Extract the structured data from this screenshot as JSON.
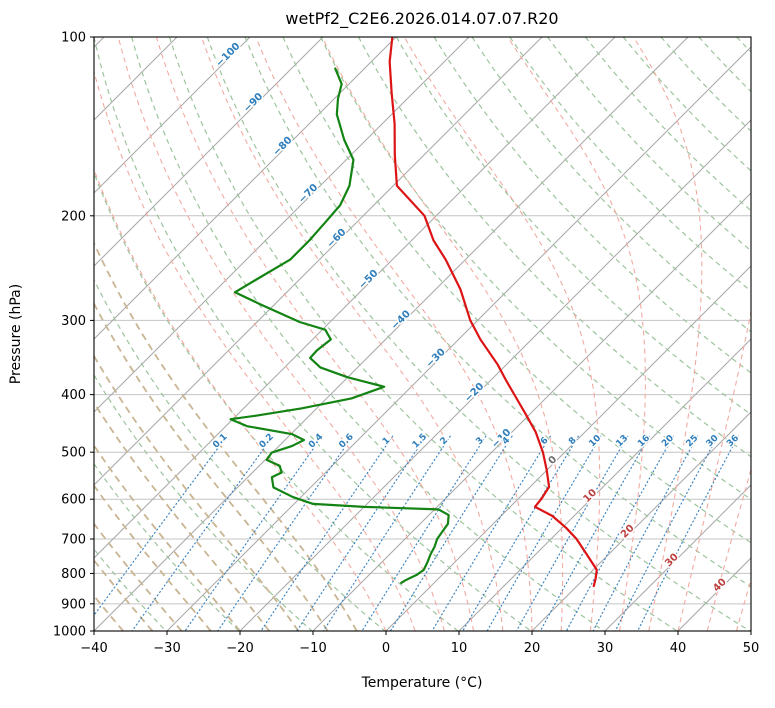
{
  "window": {
    "title": "wetPf2_C2E6.2026.014.07.07.R20"
  },
  "chart_data": {
    "type": "line",
    "variant": "skew-t-log-p-sounding",
    "title": "wetPf2_C2E6.2026.014.07.07.R20",
    "xlabel": "Temperature (°C)",
    "ylabel": "Pressure (hPa)",
    "xlim": [
      -40,
      50
    ],
    "pressure_lim": [
      1000,
      100
    ],
    "y_scale": "log",
    "skew": "isotherms-45deg",
    "grid": true,
    "legend_position": "none",
    "x_ticks": [
      -40,
      -30,
      -20,
      -10,
      0,
      10,
      20,
      30,
      40,
      50
    ],
    "y_ticks": [
      100,
      200,
      300,
      400,
      500,
      600,
      700,
      800,
      900,
      1000
    ],
    "series": [
      {
        "name": "temperature",
        "color": "#dc1414",
        "style": "solid",
        "width": 2.2,
        "points_p_t": [
          [
            100,
            -80.5
          ],
          [
            110,
            -77.5
          ],
          [
            124,
            -73
          ],
          [
            140,
            -68.3
          ],
          [
            158,
            -64
          ],
          [
            178,
            -59.5
          ],
          [
            200,
            -51.6
          ],
          [
            220,
            -47
          ],
          [
            237,
            -42.7
          ],
          [
            266,
            -36.6
          ],
          [
            300,
            -31
          ],
          [
            323,
            -27
          ],
          [
            356,
            -21.2
          ],
          [
            377,
            -18.1
          ],
          [
            400,
            -14.8
          ],
          [
            432,
            -10.5
          ],
          [
            462,
            -6.8
          ],
          [
            500,
            -3
          ],
          [
            535,
            -0.1
          ],
          [
            572,
            2.6
          ],
          [
            600,
            3.2
          ],
          [
            618,
            3.4
          ],
          [
            640,
            7
          ],
          [
            670,
            10.5
          ],
          [
            700,
            13.5
          ],
          [
            743,
            17
          ],
          [
            789,
            20.5
          ],
          [
            815,
            21.5
          ],
          [
            840,
            22.3
          ]
        ]
      },
      {
        "name": "dewpoint",
        "color": "#138413",
        "style": "solid",
        "width": 2.2,
        "points_p_t": [
          [
            113,
            -84
          ],
          [
            120,
            -81
          ],
          [
            127,
            -79.5
          ],
          [
            135,
            -77.5
          ],
          [
            149,
            -73
          ],
          [
            161,
            -69
          ],
          [
            178,
            -66
          ],
          [
            192,
            -64.6
          ],
          [
            205,
            -64.3
          ],
          [
            220,
            -64
          ],
          [
            237,
            -64
          ],
          [
            257,
            -66
          ],
          [
            269,
            -67.1
          ],
          [
            282,
            -61.9
          ],
          [
            302,
            -54.1
          ],
          [
            311,
            -49.6
          ],
          [
            323,
            -47.5
          ],
          [
            337,
            -47.9
          ],
          [
            347,
            -47.8
          ],
          [
            360,
            -45.1
          ],
          [
            374,
            -40
          ],
          [
            388,
            -33.7
          ],
          [
            406,
            -36.6
          ],
          [
            422,
            -42.1
          ],
          [
            434,
            -47.3
          ],
          [
            440,
            -50.3
          ],
          [
            452,
            -47.1
          ],
          [
            466,
            -39.9
          ],
          [
            477,
            -37.4
          ],
          [
            488,
            -38.2
          ],
          [
            501,
            -40.1
          ],
          [
            515,
            -39.8
          ],
          [
            527,
            -37.2
          ],
          [
            541,
            -36
          ],
          [
            551,
            -36.7
          ],
          [
            573,
            -35.1
          ],
          [
            595,
            -31.1
          ],
          [
            611,
            -27.4
          ],
          [
            618,
            -20
          ],
          [
            624,
            -9.5
          ],
          [
            638,
            -7.3
          ],
          [
            660,
            -6.2
          ],
          [
            680,
            -5.9
          ],
          [
            700,
            -5.6
          ],
          [
            721,
            -4.9
          ],
          [
            743,
            -4.4
          ],
          [
            764,
            -3.8
          ],
          [
            789,
            -3.2
          ],
          [
            805,
            -3.5
          ],
          [
            815,
            -4
          ],
          [
            822,
            -4.3
          ],
          [
            830,
            -4.5
          ]
        ]
      }
    ],
    "background": {
      "isotherms": {
        "min": -120,
        "max": 50,
        "step": 10,
        "color": "#a8a8a8"
      },
      "dry_adiabats_theta_k": {
        "min": 243,
        "max": 493,
        "step": 10,
        "color": "#9dc49d"
      },
      "moist_adiabats_cold_c": {
        "min": -40,
        "max": -4,
        "step": 4,
        "color": "#c9b593"
      },
      "moist_adiabats_warm_c": {
        "min": 0,
        "max": 48,
        "step": 4,
        "color": "#f2aba1"
      },
      "mixing_ratio_gkg": [
        0.1,
        0.2,
        0.4,
        0.6,
        1,
        1.5,
        2,
        3,
        4,
        6,
        8,
        10,
        13,
        16,
        20,
        25,
        30,
        36
      ],
      "mixing_color": "#3d85c0",
      "grid_color": "#c4c4c4"
    },
    "isotherm_labels": [
      {
        "t": -100,
        "p": 108,
        "color": "#2f7ebc"
      },
      {
        "t": -90,
        "p": 130,
        "color": "#2f7ebc"
      },
      {
        "t": -80,
        "p": 154,
        "color": "#2f7ebc"
      },
      {
        "t": -70,
        "p": 185,
        "color": "#2f7ebc"
      },
      {
        "t": -60,
        "p": 220,
        "color": "#2f7ebc"
      },
      {
        "t": -50,
        "p": 258,
        "color": "#2f7ebc"
      },
      {
        "t": -40,
        "p": 302,
        "color": "#2f7ebc"
      },
      {
        "t": -30,
        "p": 350,
        "color": "#2f7ebc"
      },
      {
        "t": -20,
        "p": 400,
        "color": "#2f7ebc"
      },
      {
        "t": -10,
        "p": 478,
        "color": "#2f7ebc"
      },
      {
        "t": 0,
        "p": 520,
        "color": "#6e6e6e"
      },
      {
        "t": 10,
        "p": 597,
        "color": "#bc4040"
      },
      {
        "t": 20,
        "p": 685,
        "color": "#bc4040"
      },
      {
        "t": 30,
        "p": 766,
        "color": "#bc4040"
      },
      {
        "t": 40,
        "p": 844,
        "color": "#bc4040"
      }
    ],
    "mixing_ratio_labels": {
      "pressure": 482,
      "color": "#2f7ebc"
    }
  }
}
